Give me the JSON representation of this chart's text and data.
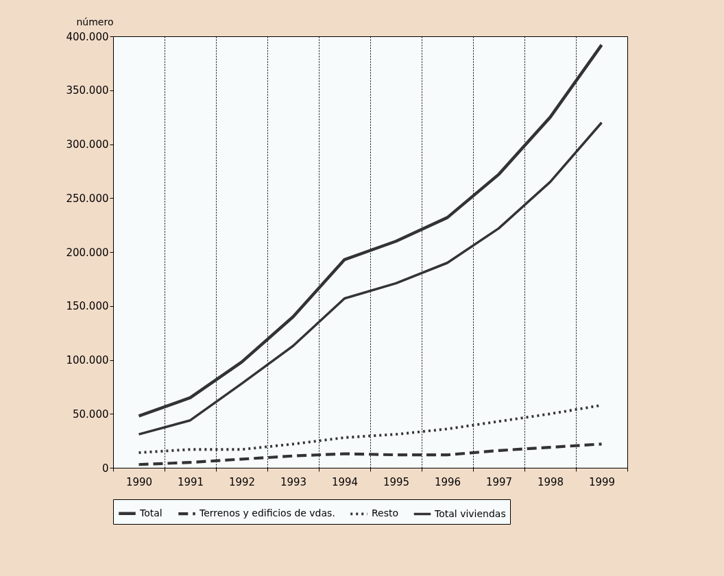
{
  "chart_data": {
    "type": "line",
    "ylabel": "número",
    "categories": [
      "1990",
      "1991",
      "1992",
      "1993",
      "1994",
      "1995",
      "1996",
      "1997",
      "1998",
      "1999"
    ],
    "series": [
      {
        "name": "Total",
        "color": "#333333",
        "line_style": "solid",
        "values": [
          48000,
          65000,
          98000,
          140000,
          193000,
          210000,
          232000,
          272000,
          325000,
          392000
        ]
      },
      {
        "name": "Terrenos y edificios de vdas.",
        "color": "#333333",
        "line_style": "dashed",
        "values": [
          3000,
          5000,
          8000,
          11000,
          13000,
          12000,
          12000,
          16000,
          19000,
          22000
        ]
      },
      {
        "name": "Resto",
        "color": "#333333",
        "line_style": "dotted",
        "values": [
          14000,
          17000,
          17000,
          22000,
          28000,
          31000,
          36000,
          43000,
          50000,
          58000
        ]
      },
      {
        "name": "Total viviendas",
        "color": "#333333",
        "line_style": "solid",
        "values": [
          31000,
          44000,
          78000,
          113000,
          157000,
          171000,
          190000,
          222000,
          265000,
          320000
        ]
      }
    ],
    "ylim": [
      0,
      400000
    ],
    "yticks": [
      0,
      {
        "value": 50000,
        "label": "50.000"
      },
      {
        "value": 100000,
        "label": "100.000"
      },
      {
        "value": 150000,
        "label": "150.000"
      },
      {
        "value": 200000,
        "label": "200.000"
      },
      {
        "value": 250000,
        "label": "250.000"
      },
      {
        "value": 300000,
        "label": "300.000"
      },
      {
        "value": 350000,
        "label": "350.000"
      },
      {
        "value": 400000,
        "label": "400.000"
      }
    ],
    "grid": "x",
    "legend": "bottom"
  }
}
